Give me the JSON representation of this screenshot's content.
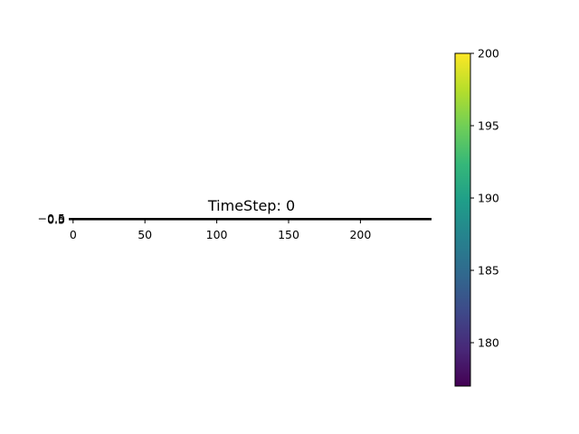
{
  "chart_data": {
    "type": "heatmap",
    "title": "TimeStep: 0",
    "xlabel": "",
    "ylabel": "",
    "x_range": [
      -0.5,
      249.5
    ],
    "y_range": [
      -0.5,
      0.5
    ],
    "x_ticks": [
      0,
      50,
      100,
      150,
      200
    ],
    "y_ticks": [
      -0.5,
      0.0,
      0.5
    ],
    "y_tick_labels": [
      "−0.5",
      "0.0",
      "0.5"
    ],
    "grid": false,
    "colorbar": {
      "colormap": "viridis",
      "range": [
        177,
        200
      ],
      "ticks": [
        180,
        185,
        190,
        195,
        200
      ],
      "colors": [
        "#440154",
        "#482878",
        "#3e4989",
        "#31688e",
        "#26828e",
        "#1f9e89",
        "#35b779",
        "#6ece58",
        "#b5de2b",
        "#fde725"
      ]
    }
  }
}
